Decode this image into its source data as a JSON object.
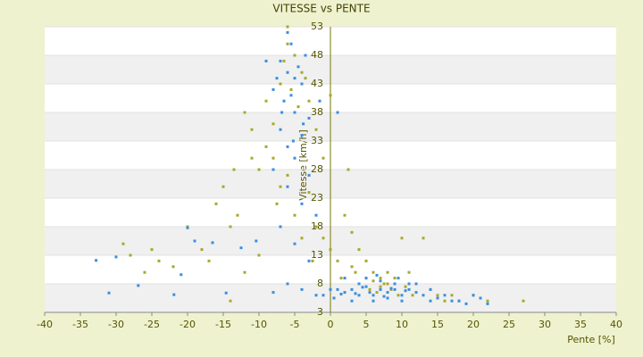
{
  "chart_data": {
    "type": "scatter",
    "title": "VITESSE vs PENTE",
    "x_label": "Pente [%]",
    "y_label": "Vitesse [km/h]",
    "xlim": [
      -40,
      40
    ],
    "ylim": [
      3,
      53
    ],
    "xticks": [
      -40,
      -35,
      -30,
      -25,
      -20,
      -15,
      -10,
      -5,
      0,
      5,
      10,
      15,
      20,
      25,
      30,
      35,
      40
    ],
    "yticks": [
      3,
      8,
      13,
      18,
      23,
      28,
      33,
      38,
      43,
      48,
      53
    ],
    "grid": true,
    "series": [
      {
        "color": "#a8a82a",
        "x": [
          -29,
          -28,
          -25,
          -24,
          -22,
          -20,
          -18,
          -16,
          -15,
          -14,
          -13,
          -12,
          -11,
          -10,
          -9,
          -8,
          -7,
          -6,
          -5,
          -4,
          -3,
          -2,
          -1,
          0,
          -7,
          -5,
          -4,
          -2,
          -1,
          0,
          1,
          2,
          3,
          4,
          5,
          6,
          7,
          8,
          9,
          10,
          11,
          12,
          13,
          14,
          15,
          16,
          17,
          18,
          20,
          22,
          27,
          -14,
          -6,
          -3,
          2.5,
          3,
          5,
          6,
          7,
          8,
          4,
          -10,
          -12,
          -11,
          -9,
          -8,
          -6.5,
          -5.5,
          -4.5,
          -3.5,
          1.5,
          3.5,
          5.5,
          6.5,
          7.5,
          8.5,
          9.5,
          10.5,
          11.5,
          -26,
          -17,
          -13.5,
          -6,
          -7.5,
          -2.5
        ],
        "values": [
          15,
          13,
          14,
          12,
          11,
          18,
          14,
          22,
          25,
          18,
          20,
          38,
          30,
          28,
          40,
          36,
          43,
          53,
          48,
          45,
          40,
          35,
          30,
          41,
          25,
          20,
          16,
          18,
          16,
          14,
          12,
          20,
          17,
          14,
          12,
          10,
          9,
          8,
          9,
          16,
          10,
          8,
          16,
          7,
          6,
          5,
          6,
          5,
          6,
          5,
          5,
          5,
          27,
          24,
          28,
          11,
          9,
          8.5,
          7.5,
          10,
          8,
          13,
          10,
          35,
          32,
          30,
          47,
          42,
          39,
          44,
          9,
          10,
          7,
          6.5,
          8,
          7,
          6,
          7.5,
          6,
          10,
          12,
          28,
          50,
          22,
          12
        ]
      },
      {
        "color": "#3a8ee0",
        "x": [
          -32.8,
          -31,
          -30,
          -26.9,
          -21.9,
          -20.9,
          -20,
          -19,
          -16.5,
          -14.6,
          -12.5,
          -10.4,
          -6,
          -5.5,
          -7,
          -6,
          -5,
          -4,
          -8,
          -6.5,
          -5,
          -3,
          -7,
          -4,
          -6,
          -5,
          -8,
          -3,
          -6,
          -4,
          -2,
          -7,
          -5,
          -3,
          -6,
          -4,
          -2,
          -8,
          -1,
          0,
          -1.5,
          1,
          -9,
          -3.5,
          1,
          2,
          3,
          4,
          5,
          6,
          7,
          8,
          9,
          10,
          11,
          12,
          13,
          14,
          15,
          16,
          17,
          18,
          19,
          20,
          21,
          22,
          5,
          7,
          9,
          3,
          6,
          8,
          10,
          11,
          4,
          2,
          12,
          14,
          0.5,
          1.5,
          6.5,
          9.5,
          5.5,
          7.5,
          8.5,
          10.5,
          3.5,
          4.5,
          -4.5,
          -5.5,
          -6.8,
          -3.8,
          -7.5,
          -5.2
        ],
        "values": [
          12.1,
          6.4,
          12.7,
          7.7,
          6.1,
          9.6,
          17.8,
          15.5,
          15.2,
          6.4,
          14.3,
          15.5,
          52,
          50,
          47,
          45,
          44,
          43,
          42,
          40,
          38,
          37,
          35,
          34,
          32,
          30,
          28,
          27,
          25,
          22,
          20,
          18,
          15,
          12,
          8,
          7,
          6,
          6.5,
          6,
          7,
          40,
          38,
          47,
          48,
          7,
          6.5,
          7,
          6,
          7.5,
          6,
          7,
          6.5,
          7,
          6,
          7,
          6.5,
          6,
          7,
          5.5,
          6,
          5,
          5,
          4.5,
          6,
          5.5,
          4.5,
          9,
          8.5,
          8,
          5,
          5,
          5.5,
          5,
          8,
          8,
          9,
          8,
          5,
          5.5,
          6.2,
          9.5,
          9,
          6.5,
          5.8,
          7.2,
          6.8,
          6.3,
          7.4,
          46,
          41,
          38,
          36,
          44,
          33
        ]
      }
    ]
  }
}
